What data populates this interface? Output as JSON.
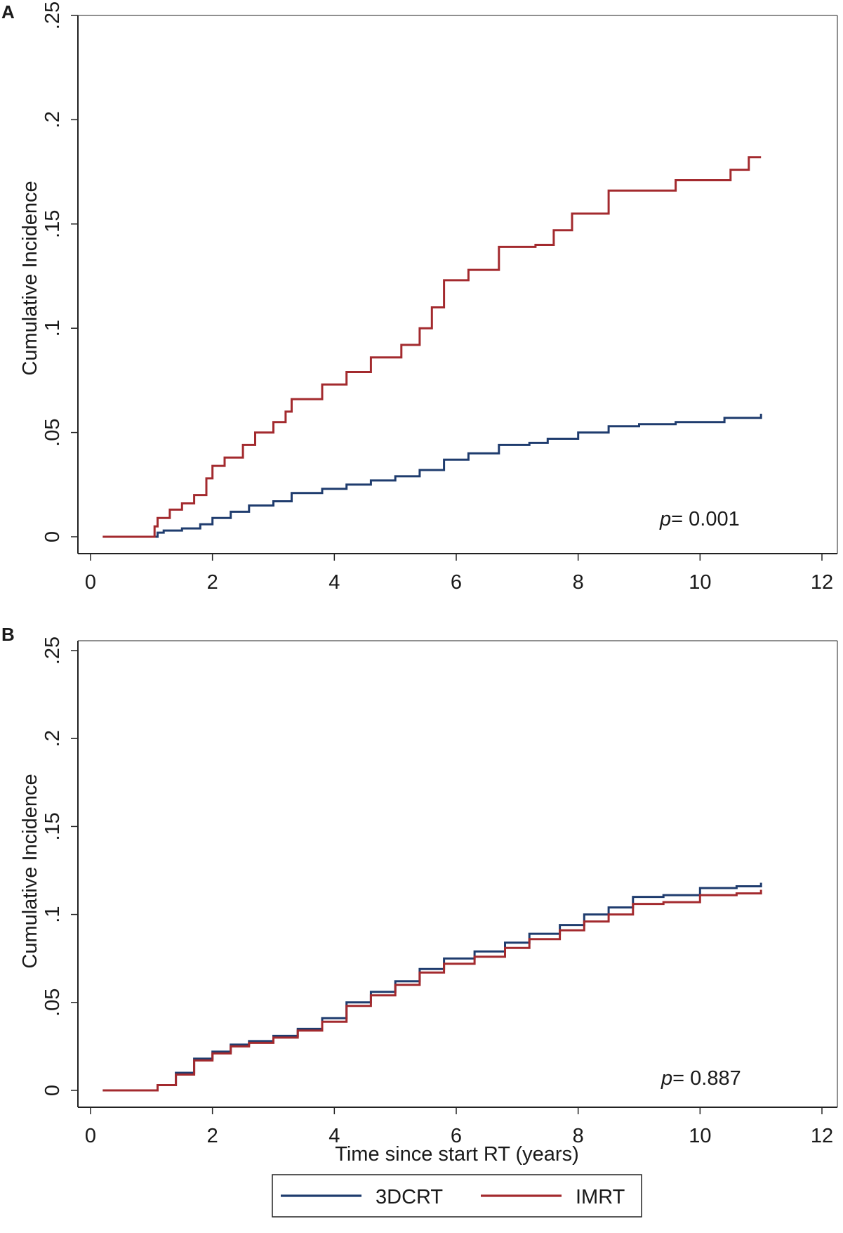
{
  "chart_data": [
    {
      "type": "line",
      "panel_label": "A",
      "title": "",
      "xlabel": "",
      "ylabel": "Cumulative Incidence",
      "xlim": [
        0,
        12
      ],
      "ylim": [
        0,
        0.25
      ],
      "xticks": [
        0,
        2,
        4,
        6,
        8,
        10,
        12
      ],
      "xtick_labels": [
        "0",
        "2",
        "4",
        "6",
        "8",
        "10",
        "12"
      ],
      "yticks": [
        0,
        0.05,
        0.1,
        0.15,
        0.2,
        0.25
      ],
      "ytick_labels": [
        "0",
        ".05",
        ".1",
        ".15",
        ".2",
        ".25"
      ],
      "grid": false,
      "annotation": {
        "prefix": "p",
        "text": "= 0.001"
      },
      "series": [
        {
          "name": "3DCRT",
          "color": "#1f3c6e",
          "step": true,
          "x": [
            0.2,
            1.1,
            1.2,
            1.5,
            1.8,
            2.0,
            2.3,
            2.6,
            3.0,
            3.3,
            3.8,
            4.2,
            4.6,
            5.0,
            5.4,
            5.8,
            6.2,
            6.7,
            7.2,
            7.5,
            8.0,
            8.5,
            9.0,
            9.6,
            10.4,
            11.0
          ],
          "y": [
            0.0,
            0.002,
            0.003,
            0.004,
            0.006,
            0.009,
            0.012,
            0.015,
            0.017,
            0.021,
            0.023,
            0.025,
            0.027,
            0.029,
            0.032,
            0.037,
            0.04,
            0.044,
            0.045,
            0.047,
            0.05,
            0.053,
            0.054,
            0.055,
            0.057,
            0.059
          ]
        },
        {
          "name": "IMRT",
          "color": "#a32a2e",
          "step": true,
          "x": [
            0.2,
            1.05,
            1.1,
            1.3,
            1.5,
            1.7,
            1.9,
            2.0,
            2.2,
            2.5,
            2.7,
            3.0,
            3.2,
            3.3,
            3.8,
            4.2,
            4.6,
            5.1,
            5.4,
            5.6,
            5.8,
            6.2,
            6.7,
            7.3,
            7.6,
            7.9,
            8.5,
            9.6,
            10.5,
            10.8,
            11.0
          ],
          "y": [
            0.0,
            0.005,
            0.009,
            0.013,
            0.016,
            0.02,
            0.028,
            0.034,
            0.038,
            0.044,
            0.05,
            0.055,
            0.06,
            0.066,
            0.073,
            0.079,
            0.086,
            0.092,
            0.1,
            0.11,
            0.123,
            0.128,
            0.139,
            0.14,
            0.147,
            0.155,
            0.166,
            0.171,
            0.176,
            0.182,
            0.182
          ]
        }
      ]
    },
    {
      "type": "line",
      "panel_label": "B",
      "title": "",
      "xlabel": "Time since start RT (years)",
      "ylabel": "Cumulative Incidence",
      "xlim": [
        0,
        12
      ],
      "ylim": [
        0,
        0.25
      ],
      "xticks": [
        0,
        2,
        4,
        6,
        8,
        10,
        12
      ],
      "xtick_labels": [
        "0",
        "2",
        "4",
        "6",
        "8",
        "10",
        "12"
      ],
      "yticks": [
        0,
        0.05,
        0.1,
        0.15,
        0.2,
        0.25
      ],
      "ytick_labels": [
        "0",
        ".05",
        ".1",
        ".15",
        ".2",
        ".25"
      ],
      "grid": false,
      "annotation": {
        "prefix": "p",
        "text": "= 0.887"
      },
      "series": [
        {
          "name": "3DCRT",
          "color": "#1f3c6e",
          "step": true,
          "x": [
            0.2,
            1.1,
            1.4,
            1.7,
            2.0,
            2.3,
            2.6,
            3.0,
            3.4,
            3.8,
            4.2,
            4.6,
            5.0,
            5.4,
            5.8,
            6.3,
            6.8,
            7.2,
            7.7,
            8.1,
            8.5,
            8.9,
            9.4,
            10.0,
            10.6,
            11.0
          ],
          "y": [
            0.0,
            0.003,
            0.01,
            0.018,
            0.022,
            0.026,
            0.028,
            0.031,
            0.035,
            0.041,
            0.05,
            0.056,
            0.062,
            0.069,
            0.075,
            0.079,
            0.084,
            0.089,
            0.094,
            0.1,
            0.104,
            0.11,
            0.111,
            0.115,
            0.116,
            0.118
          ]
        },
        {
          "name": "IMRT",
          "color": "#a32a2e",
          "step": true,
          "x": [
            0.2,
            1.1,
            1.4,
            1.7,
            2.0,
            2.3,
            2.6,
            3.0,
            3.4,
            3.8,
            4.2,
            4.6,
            5.0,
            5.4,
            5.8,
            6.3,
            6.8,
            7.2,
            7.7,
            8.1,
            8.5,
            8.9,
            9.4,
            10.0,
            10.6,
            11.0
          ],
          "y": [
            0.0,
            0.003,
            0.009,
            0.017,
            0.021,
            0.025,
            0.027,
            0.03,
            0.034,
            0.039,
            0.048,
            0.054,
            0.06,
            0.067,
            0.072,
            0.076,
            0.081,
            0.086,
            0.091,
            0.096,
            0.1,
            0.106,
            0.107,
            0.111,
            0.112,
            0.114
          ]
        }
      ]
    }
  ],
  "legend": {
    "entries": [
      {
        "label": "3DCRT",
        "color": "#1f3c6e"
      },
      {
        "label": "IMRT",
        "color": "#a32a2e"
      }
    ]
  }
}
